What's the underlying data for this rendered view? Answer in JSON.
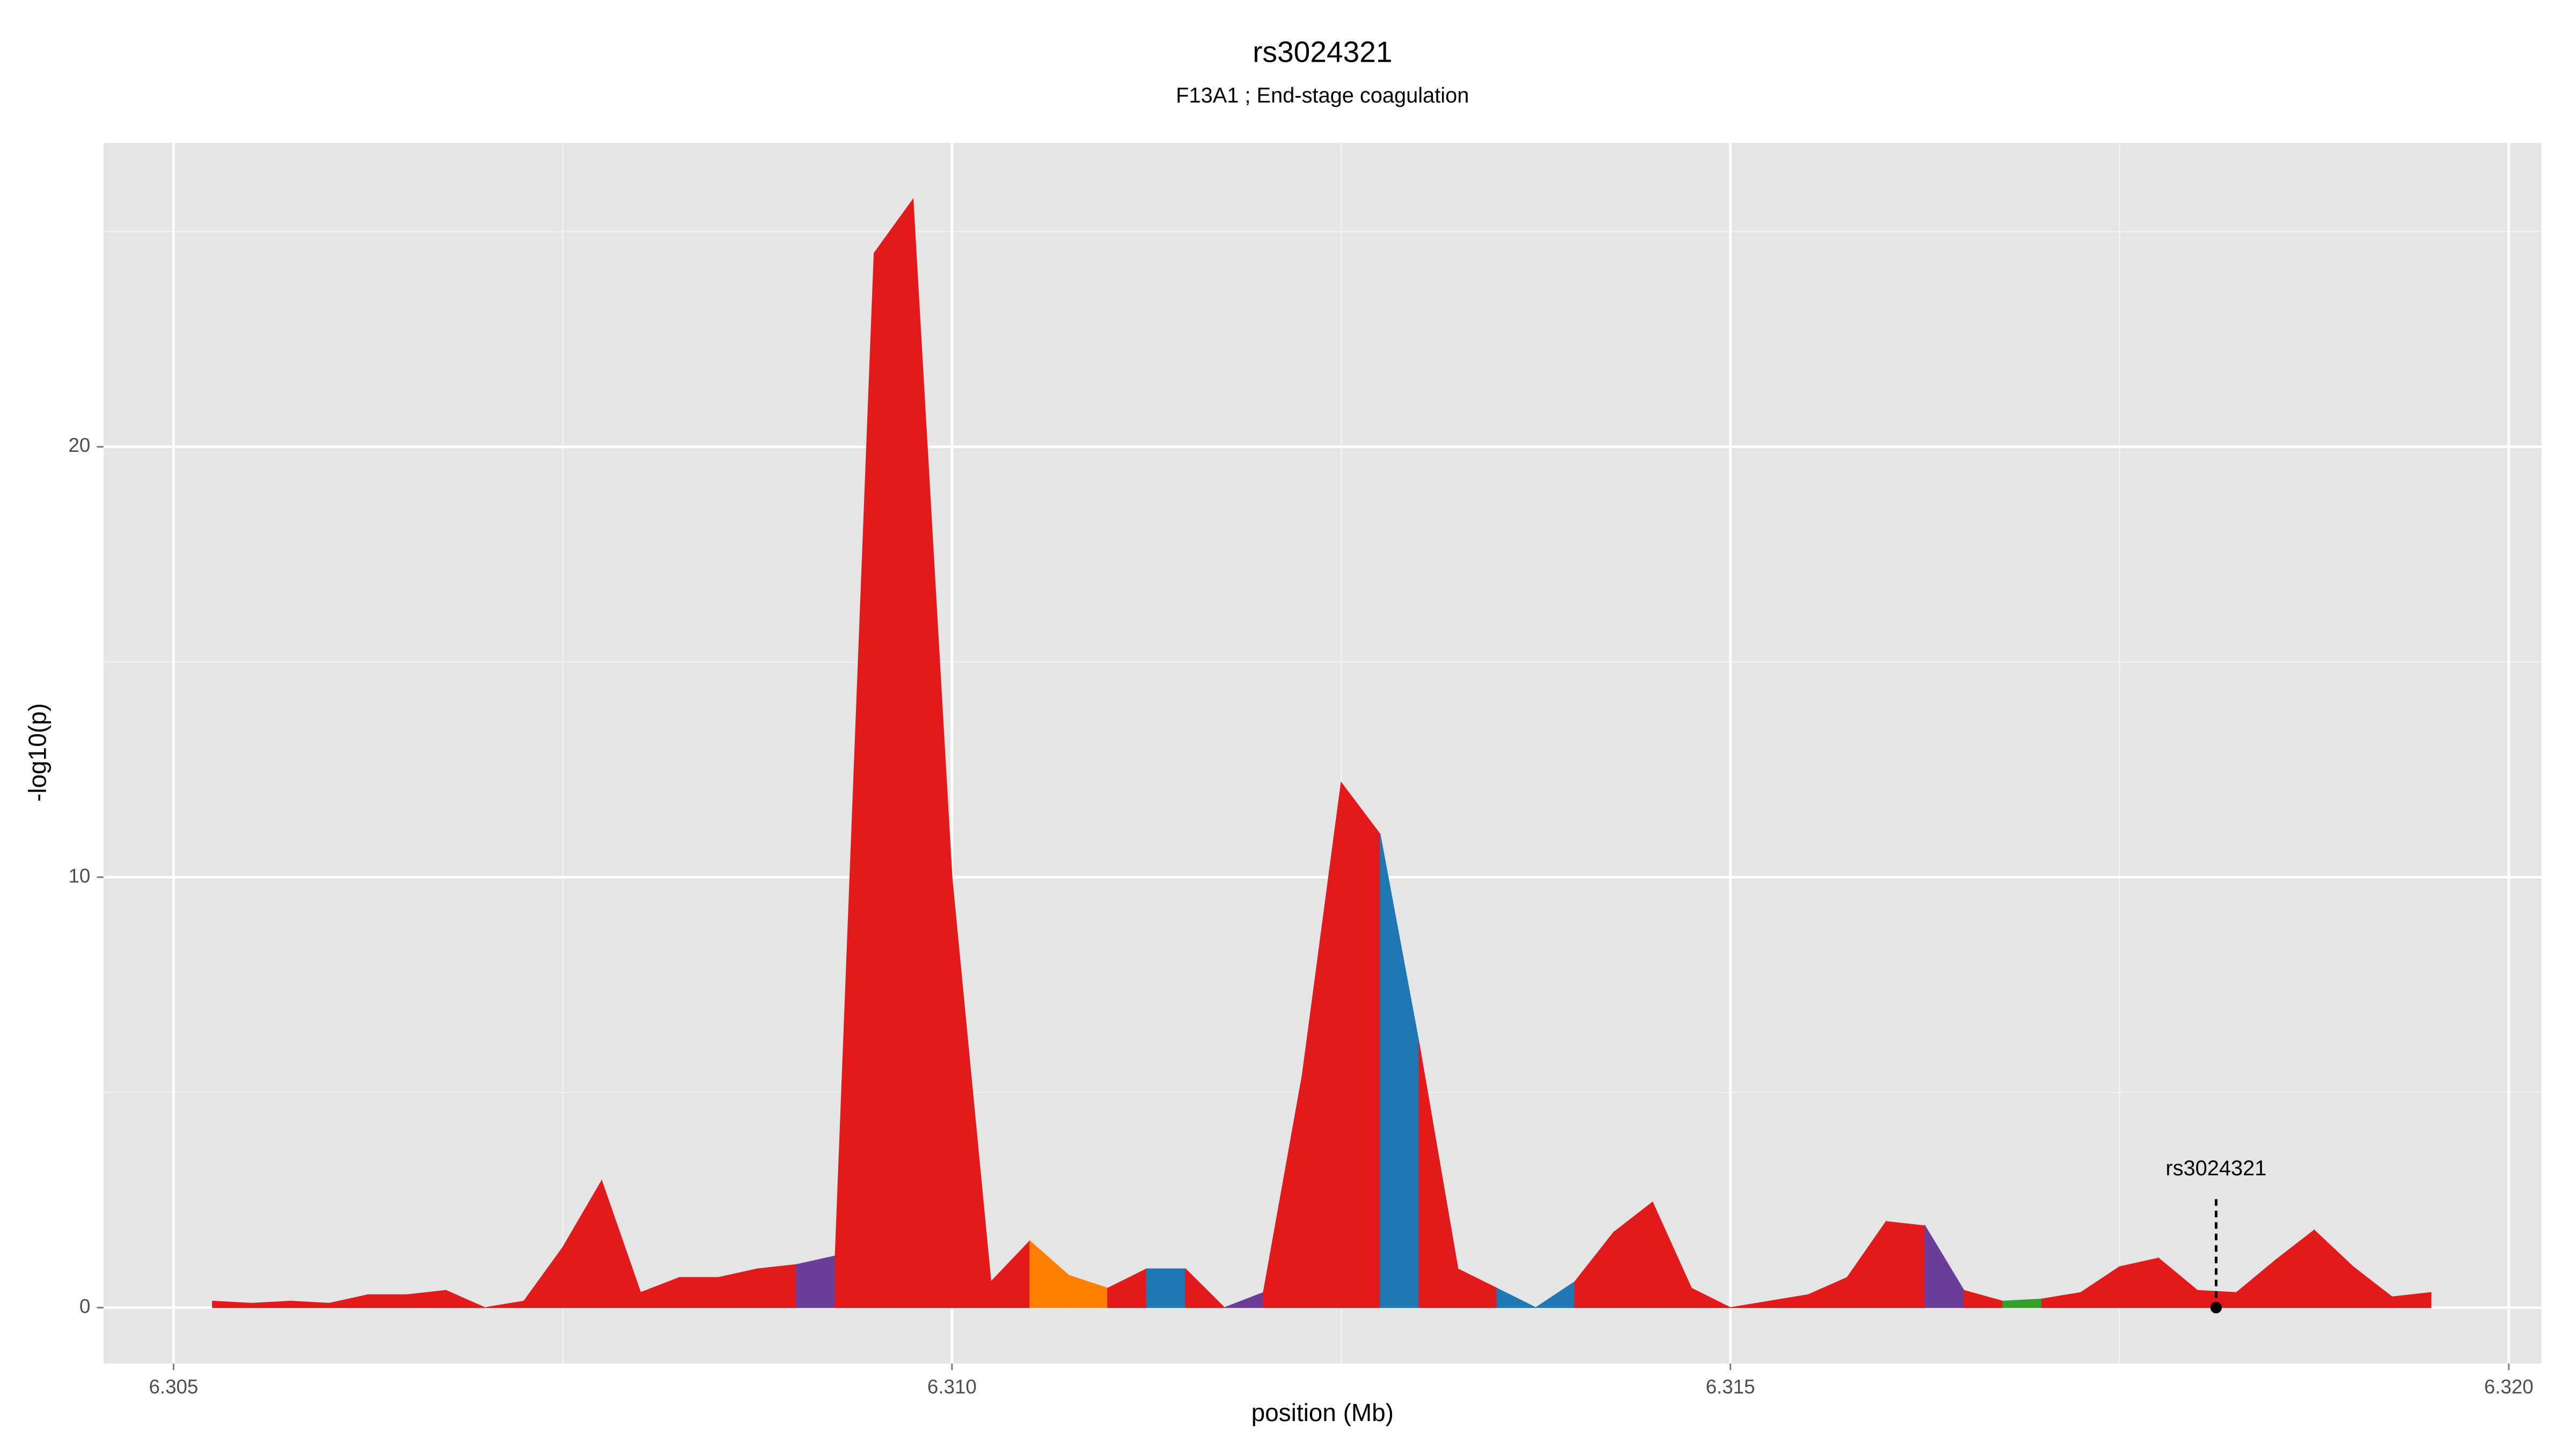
{
  "chart_data": {
    "type": "area",
    "title": "rs3024321",
    "subtitle": "F13A1 ; End-stage coagulation",
    "xlabel": "position (Mb)",
    "ylabel": "-log10(p)",
    "x": [
      6.30525,
      6.3055,
      6.30575,
      6.306,
      6.30625,
      6.3065,
      6.30675,
      6.307,
      6.30725,
      6.3075,
      6.30775,
      6.308,
      6.30825,
      6.3085,
      6.30875,
      6.309,
      6.30925,
      6.3095,
      6.30975,
      6.31,
      6.31025,
      6.3105,
      6.31075,
      6.311,
      6.31125,
      6.3115,
      6.31175,
      6.312,
      6.31225,
      6.3125,
      6.31275,
      6.313,
      6.31325,
      6.3135,
      6.31375,
      6.314,
      6.31425,
      6.3145,
      6.31475,
      6.315,
      6.31525,
      6.3155,
      6.31575,
      6.316,
      6.31625,
      6.3165,
      6.31675,
      6.317,
      6.31725,
      6.3175,
      6.31775,
      6.318,
      6.31825,
      6.3185,
      6.31875,
      6.319,
      6.31925,
      6.3195
    ],
    "values": [
      0.15,
      0.1,
      0.15,
      0.1,
      0.3,
      0.3,
      0.4,
      0,
      0.15,
      1.4,
      2.95,
      0.35,
      0.7,
      0.7,
      0.9,
      1.0,
      1.2,
      24.5,
      25.75,
      10.0,
      0.6,
      1.55,
      0.75,
      0.45,
      0.9,
      0.9,
      0,
      0.35,
      5.4,
      12.2,
      11.0,
      6.15,
      0.9,
      0.45,
      0,
      0.6,
      1.75,
      2.45,
      0.45,
      0,
      0.15,
      0.3,
      0.7,
      2.0,
      1.9,
      0.4,
      0.15,
      0.2,
      0.35,
      0.95,
      1.15,
      0.4,
      0.35,
      1.1,
      1.8,
      0.95,
      0.25,
      0.35
    ],
    "segment_colors": [
      "#e31a1c",
      "#e31a1c",
      "#e31a1c",
      "#e31a1c",
      "#e31a1c",
      "#e31a1c",
      "#e31a1c",
      "#e31a1c",
      "#e31a1c",
      "#e31a1c",
      "#e31a1c",
      "#e31a1c",
      "#e31a1c",
      "#e31a1c",
      "#e31a1c",
      "#6a3d9a",
      "#e31a1c",
      "#e31a1c",
      "#e31a1c",
      "#e31a1c",
      "#e31a1c",
      "#ff7f00",
      "#ff7f00",
      "#e31a1c",
      "#1f78b4",
      "#e31a1c",
      "#6a3d9a",
      "#e31a1c",
      "#e31a1c",
      "#e31a1c",
      "#1f78b4",
      "#e31a1c",
      "#e31a1c",
      "#1f78b4",
      "#1f78b4",
      "#e31a1c",
      "#e31a1c",
      "#e31a1c",
      "#e31a1c",
      "#e31a1c",
      "#e31a1c",
      "#e31a1c",
      "#e31a1c",
      "#e31a1c",
      "#6a3d9a",
      "#e31a1c",
      "#33a02c",
      "#e31a1c",
      "#e31a1c",
      "#e31a1c",
      "#e31a1c",
      "#e31a1c",
      "#e31a1c",
      "#e31a1c",
      "#e31a1c",
      "#e31a1c",
      "#e31a1c"
    ],
    "highlight": {
      "label": "rs3024321",
      "x": 6.31812,
      "y": 0
    },
    "xlim": [
      6.30455,
      6.32021
    ],
    "ylim": [
      -1.3,
      27.06
    ],
    "xticks": [
      6.305,
      {
        "value": 6.31,
        "label": "6.310"
      },
      6.315,
      {
        "value": 6.32,
        "label": "6.320"
      }
    ],
    "yticks": [
      0,
      10,
      20
    ],
    "x_minor_grid": [
      6.3075,
      6.3125,
      6.3175
    ],
    "y_minor_grid": [
      5,
      15,
      25
    ],
    "grid": true
  }
}
